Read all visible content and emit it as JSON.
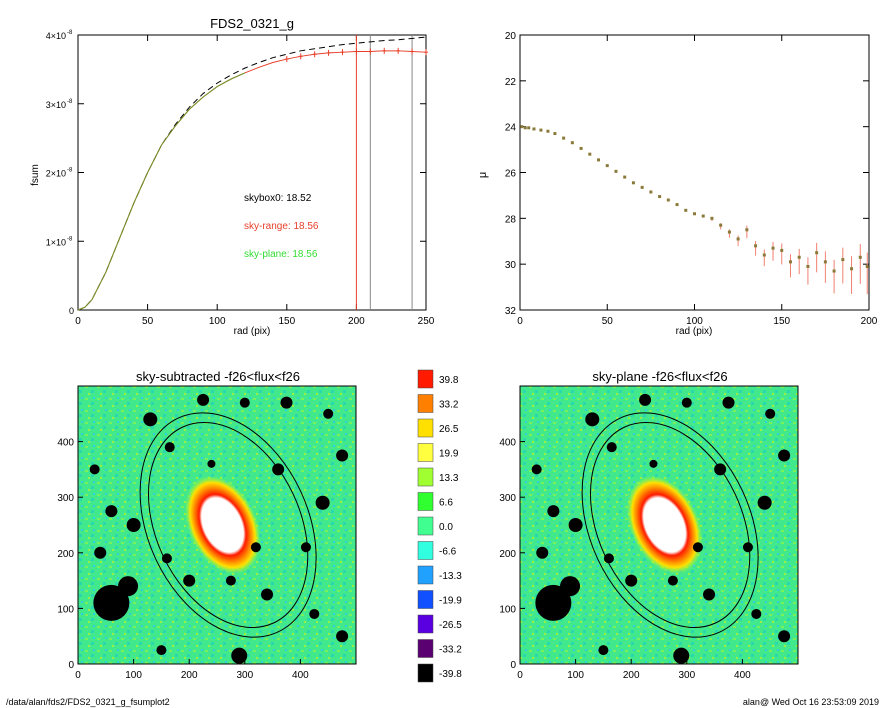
{
  "figure_footer": {
    "path": "/data/alan/fds2/FDS2_0321_g_fsumplot2",
    "stamp": "alan@  Wed Oct 16 23:53:09 2019"
  },
  "chart_data": [
    {
      "type": "line",
      "title": "FDS2_0321_g",
      "xlabel": "rad (pix)",
      "ylabel": "fsum",
      "xlim": [
        0,
        250
      ],
      "ylim": [
        0,
        4e-08
      ],
      "x_ticks": [
        "0",
        "50",
        "100",
        "150",
        "200",
        "250"
      ],
      "y_ticks": [
        "0",
        "1×10",
        "2×10",
        "3×10",
        "4×10"
      ],
      "y_tick_exponent": "-8",
      "series": [
        {
          "style": "dashed",
          "color": "#000000",
          "x": [
            0,
            5,
            10,
            20,
            30,
            40,
            50,
            60,
            70,
            80,
            90,
            100,
            110,
            120,
            130,
            140,
            150,
            160,
            170,
            180,
            190,
            200,
            210,
            220,
            230,
            240,
            250
          ],
          "y": [
            0,
            4e-10,
            1.5e-09,
            5.5e-09,
            1.05e-08,
            1.55e-08,
            2e-08,
            2.4e-08,
            2.7e-08,
            2.95e-08,
            3.15e-08,
            3.3e-08,
            3.42e-08,
            3.52e-08,
            3.6e-08,
            3.67e-08,
            3.72e-08,
            3.77e-08,
            3.8e-08,
            3.83e-08,
            3.86e-08,
            3.88e-08,
            3.9e-08,
            3.92e-08,
            3.93e-08,
            3.95e-08,
            3.97e-08
          ]
        },
        {
          "style": "solid+error",
          "color": "#e8402a",
          "x": [
            0,
            5,
            10,
            20,
            30,
            40,
            50,
            60,
            70,
            80,
            90,
            100,
            110,
            120,
            130,
            140,
            150,
            160,
            170,
            180,
            190,
            200,
            210,
            220,
            230,
            240,
            250
          ],
          "y": [
            0,
            4e-10,
            1.5e-09,
            5.5e-09,
            1.05e-08,
            1.55e-08,
            2e-08,
            2.4e-08,
            2.68e-08,
            2.92e-08,
            3.1e-08,
            3.25e-08,
            3.36e-08,
            3.45e-08,
            3.53e-08,
            3.6e-08,
            3.65e-08,
            3.69e-08,
            3.72e-08,
            3.74e-08,
            3.75e-08,
            3.76e-08,
            3.76e-08,
            3.77e-08,
            3.77e-08,
            3.76e-08,
            3.75e-08
          ]
        },
        {
          "style": "solid",
          "color": "#6a9a2a",
          "x": [
            0,
            5,
            10,
            20,
            30,
            40,
            50,
            60,
            70,
            80,
            90,
            100,
            110,
            120
          ],
          "y": [
            0,
            4e-10,
            1.5e-09,
            5.5e-09,
            1.05e-08,
            1.55e-08,
            2e-08,
            2.4e-08,
            2.68e-08,
            2.92e-08,
            3.1e-08,
            3.25e-08,
            3.36e-08,
            3.45e-08
          ]
        }
      ],
      "vlines": [
        {
          "x": 200,
          "color": "#e8402a"
        },
        {
          "x": 210,
          "color": "#888888"
        },
        {
          "x": 240,
          "color": "#888888"
        }
      ],
      "annotations": [
        {
          "text": "skybox0: 18.52",
          "color": "#000000"
        },
        {
          "text": "sky-range: 18.56",
          "color": "#e8402a"
        },
        {
          "text": "sky-plane: 18.56",
          "color": "#33dd33"
        }
      ]
    },
    {
      "type": "scatter",
      "title": "",
      "xlabel": "rad (pix)",
      "ylabel": "μ",
      "xlim": [
        0,
        200
      ],
      "ylim": [
        32,
        20
      ],
      "x_ticks": [
        "0",
        "50",
        "100",
        "150",
        "200"
      ],
      "y_ticks": [
        "20",
        "22",
        "24",
        "26",
        "28",
        "30",
        "32"
      ],
      "series": [
        {
          "color": "#8a7a3a",
          "x": [
            1,
            3,
            5,
            8,
            12,
            16,
            20,
            25,
            30,
            35,
            40,
            45,
            50,
            55,
            60,
            65,
            70,
            75,
            80,
            85,
            90,
            95,
            100,
            105,
            110,
            115,
            120,
            125,
            130,
            135,
            140,
            145,
            150,
            155,
            160,
            165,
            170,
            175,
            180,
            185,
            190,
            195,
            199
          ],
          "y": [
            24.0,
            24.05,
            24.05,
            24.1,
            24.15,
            24.2,
            24.3,
            24.5,
            24.7,
            24.95,
            25.2,
            25.45,
            25.7,
            25.95,
            26.2,
            26.45,
            26.65,
            26.85,
            27.05,
            27.2,
            27.4,
            27.65,
            27.8,
            27.9,
            28.0,
            28.3,
            28.6,
            28.9,
            28.5,
            29.2,
            29.6,
            29.3,
            29.4,
            29.9,
            29.7,
            30.1,
            29.5,
            29.9,
            30.3,
            29.8,
            30.2,
            29.7,
            30.1
          ]
        }
      ]
    },
    {
      "type": "heatmap",
      "title": "sky-subtracted -f26<flux<f26",
      "xlim": [
        0,
        500
      ],
      "ylim": [
        0,
        500
      ],
      "x_ticks": [
        "0",
        "100",
        "200",
        "300",
        "400"
      ],
      "y_ticks": [
        "0",
        "100",
        "200",
        "300",
        "400"
      ]
    },
    {
      "type": "heatmap",
      "title": "sky-plane -f26<flux<f26",
      "xlim": [
        0,
        500
      ],
      "ylim": [
        0,
        500
      ],
      "x_ticks": [
        "0",
        "100",
        "200",
        "300",
        "400"
      ],
      "y_ticks": [
        "0",
        "100",
        "200",
        "300",
        "400"
      ]
    }
  ],
  "colorbar": {
    "labels": [
      "39.8",
      "33.2",
      "26.5",
      "19.9",
      "13.3",
      "6.6",
      "0.0",
      "-6.6",
      "-13.3",
      "-19.9",
      "-26.5",
      "-33.2",
      "-39.8"
    ],
    "colors": [
      "#ff1a00",
      "#ff8000",
      "#ffe000",
      "#ffff40",
      "#a0ff30",
      "#30ff30",
      "#40ff90",
      "#30ffe0",
      "#20a0ff",
      "#1050ff",
      "#5a00e0",
      "#5a0070",
      "#000000"
    ]
  }
}
